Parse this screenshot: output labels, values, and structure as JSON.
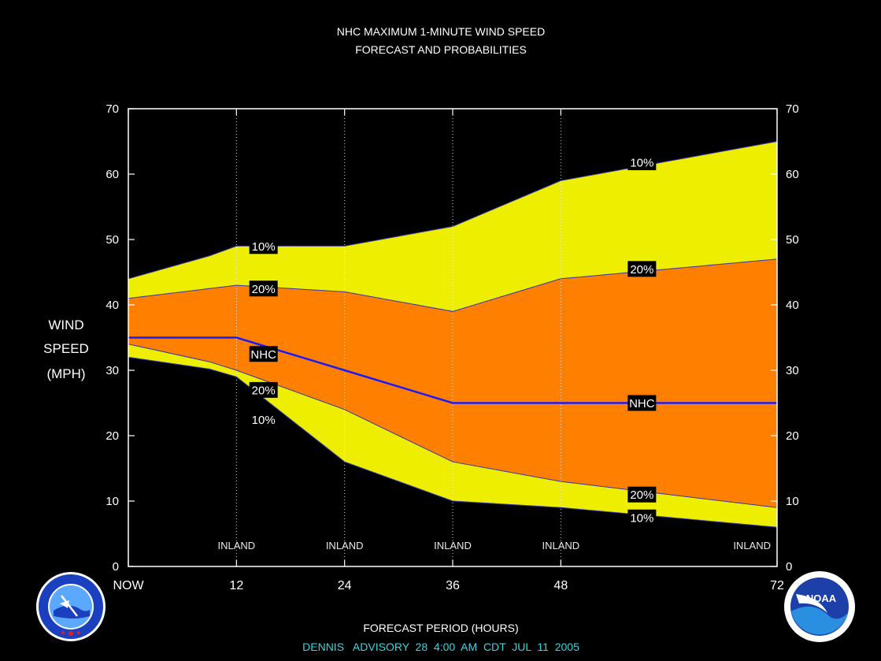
{
  "chart_data": {
    "type": "area",
    "title": "NHC MAXIMUM 1-MINUTE WIND SPEED",
    "subtitle": "FORECAST AND PROBABILITIES",
    "ylabel_lines": [
      "WIND",
      "SPEED",
      "(MPH)"
    ],
    "xlabel": "FORECAST PERIOD (HOURS)",
    "footer": "DENNIS   ADVISORY  28  4:00  AM  CDT  JUL  11  2005",
    "ylim": [
      0,
      70
    ],
    "xlim": [
      0,
      72
    ],
    "yticks": [
      0,
      10,
      20,
      30,
      40,
      50,
      60,
      70
    ],
    "xticks": [
      {
        "x": 0,
        "label": "NOW"
      },
      {
        "x": 12,
        "label": "12"
      },
      {
        "x": 24,
        "label": "24"
      },
      {
        "x": 36,
        "label": "36"
      },
      {
        "x": 48,
        "label": "48"
      },
      {
        "x": 72,
        "label": "72"
      }
    ],
    "inland_markers": [
      {
        "x": 12,
        "label": "INLAND"
      },
      {
        "x": 24,
        "label": "INLAND"
      },
      {
        "x": 36,
        "label": "INLAND"
      },
      {
        "x": 48,
        "label": "INLAND"
      },
      {
        "x": 72,
        "label": "INLAND"
      }
    ],
    "x": [
      0,
      9,
      12,
      24,
      36,
      48,
      72
    ],
    "series": [
      {
        "name": "10%",
        "role": "upper",
        "values": [
          44,
          47.5,
          49,
          49,
          52,
          59,
          65
        ]
      },
      {
        "name": "20%",
        "role": "upper",
        "values": [
          41,
          42.5,
          43,
          42,
          39,
          44,
          47
        ]
      },
      {
        "name": "NHC",
        "role": "forecast",
        "values": [
          35,
          35,
          35,
          30,
          25,
          25,
          25
        ]
      },
      {
        "name": "20%",
        "role": "lower",
        "values": [
          34,
          31.3,
          30,
          24,
          16,
          13,
          9
        ]
      },
      {
        "name": "10%",
        "role": "lower",
        "values": [
          32,
          30.2,
          29,
          16,
          10,
          9,
          6
        ]
      }
    ],
    "labels": [
      {
        "text": "10%",
        "x": 15,
        "y": 49
      },
      {
        "text": "20%",
        "x": 15,
        "y": 42.5
      },
      {
        "text": "NHC",
        "x": 15,
        "y": 32.5
      },
      {
        "text": "20%",
        "x": 15,
        "y": 27
      },
      {
        "text": "10%",
        "x": 15,
        "y": 22.5
      },
      {
        "text": "10%",
        "x": 57,
        "y": 61.8
      },
      {
        "text": "20%",
        "x": 57,
        "y": 45.5
      },
      {
        "text": "NHC",
        "x": 57,
        "y": 25
      },
      {
        "text": "20%",
        "x": 57,
        "y": 11
      },
      {
        "text": "10%",
        "x": 57,
        "y": 7.5
      }
    ],
    "colors": {
      "outer_band": "#eeee00",
      "inner_band": "#ff7f00",
      "forecast_line": "#1a1aff",
      "band_edge": "#3333aa",
      "background": "#000000",
      "axis": "#ffffff",
      "footer": "#33d6e0"
    },
    "grid": "vertical dotted at 12, 24, 36, 48",
    "logos": {
      "left": "NATIONAL WEATHER SERVICE",
      "right": "NOAA"
    }
  }
}
